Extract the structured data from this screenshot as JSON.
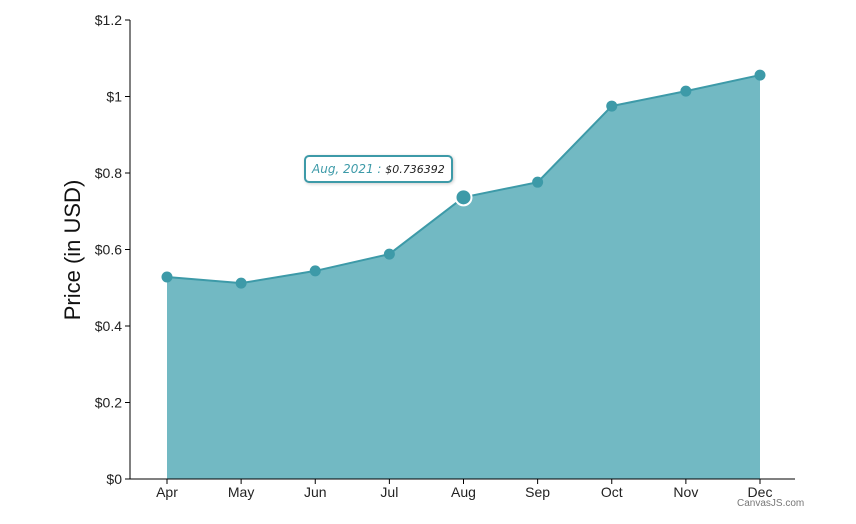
{
  "chart_data": {
    "type": "area",
    "title": "",
    "xlabel": "",
    "ylabel": "Price (in USD)",
    "categories": [
      "Apr",
      "May",
      "Jun",
      "Jul",
      "Aug",
      "Sep",
      "Oct",
      "Nov",
      "Dec"
    ],
    "values": [
      0.528,
      0.512,
      0.544,
      0.588,
      0.736392,
      0.776,
      0.975,
      1.014,
      1.056
    ],
    "ylim": [
      0,
      1.2
    ],
    "yticks": [
      0,
      0.2,
      0.4,
      0.6,
      0.8,
      1,
      1.2
    ],
    "ytick_labels": [
      "$0",
      "$0.2",
      "$0.4",
      "$0.6",
      "$0.8",
      "$1",
      "$1.2"
    ],
    "grid": false,
    "colors": {
      "fill": "#72b9c3",
      "line": "#3d9aa8",
      "marker": "#3d9aa8"
    }
  },
  "tooltip": {
    "label": "Aug, 2021 :",
    "value": "$0.736392",
    "index": 4
  },
  "credit": "CanvasJS.com"
}
